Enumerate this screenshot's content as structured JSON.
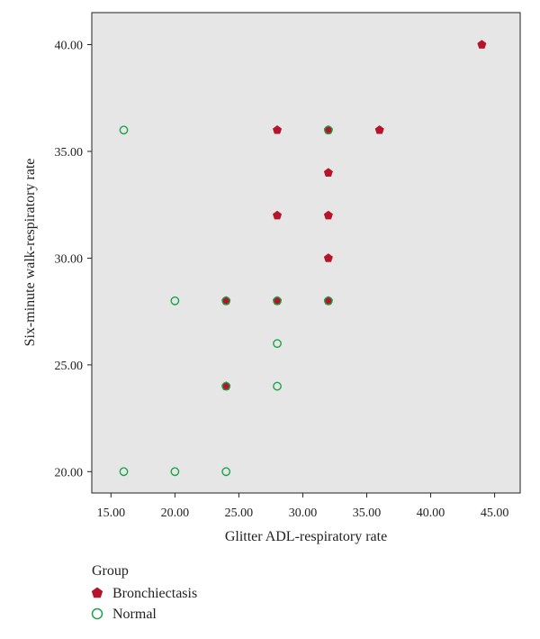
{
  "chart_data": {
    "type": "scatter",
    "xlabel": "Glitter ADL-respiratory rate",
    "ylabel": "Six-minute walk-respiratory rate",
    "xlim": [
      13.5,
      47.0
    ],
    "ylim": [
      19.0,
      41.5
    ],
    "xticks": [
      "15.00",
      "20.00",
      "25.00",
      "30.00",
      "35.00",
      "40.00",
      "45.00"
    ],
    "xtick_values": [
      15,
      20,
      25,
      30,
      35,
      40,
      45
    ],
    "yticks": [
      "20.00",
      "25.00",
      "30.00",
      "35.00",
      "40.00"
    ],
    "ytick_values": [
      20,
      25,
      30,
      35,
      40
    ],
    "grid": false,
    "legend_placement": "bottom-left",
    "legend_title": "Group",
    "plot_background": "#e6e6e6",
    "series": [
      {
        "name": "Bronchiectasis",
        "marker": "pentagon-filled",
        "color": "#b5152b",
        "points": [
          [
            44,
            40
          ],
          [
            28,
            36
          ],
          [
            32,
            36
          ],
          [
            36,
            36
          ],
          [
            32,
            34
          ],
          [
            28,
            32
          ],
          [
            32,
            32
          ],
          [
            32,
            30
          ],
          [
            24,
            28
          ],
          [
            28,
            28
          ],
          [
            32,
            28
          ],
          [
            24,
            24
          ]
        ]
      },
      {
        "name": "Normal",
        "marker": "circle-open",
        "color": "#1aa34a",
        "points": [
          [
            16,
            36
          ],
          [
            32,
            36
          ],
          [
            20,
            28
          ],
          [
            24,
            28
          ],
          [
            28,
            28
          ],
          [
            32,
            28
          ],
          [
            28,
            26
          ],
          [
            28,
            24
          ],
          [
            24,
            24
          ],
          [
            16,
            20
          ],
          [
            20,
            20
          ],
          [
            24,
            20
          ]
        ]
      }
    ]
  }
}
